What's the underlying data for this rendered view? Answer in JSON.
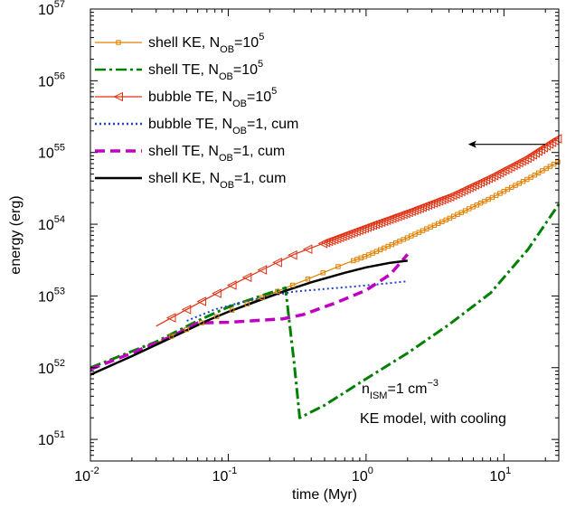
{
  "chart_data": {
    "type": "line",
    "title": "",
    "xlabel": "time (Myr)",
    "ylabel": "energy (erg)",
    "x_scale": "log",
    "y_scale": "log",
    "xlim": [
      0.01,
      25
    ],
    "ylim": [
      5e+50,
      1e+57
    ],
    "x_ticks": [
      {
        "base": "10",
        "exp": "-2",
        "value": 0.01
      },
      {
        "base": "10",
        "exp": "-1",
        "value": 0.1
      },
      {
        "base": "10",
        "exp": "0",
        "value": 1
      },
      {
        "base": "10",
        "exp": "1",
        "value": 10
      }
    ],
    "y_ticks": [
      {
        "base": "10",
        "exp": "51",
        "value": 1e+51
      },
      {
        "base": "10",
        "exp": "52",
        "value": 1e+52
      },
      {
        "base": "10",
        "exp": "53",
        "value": 1e+53
      },
      {
        "base": "10",
        "exp": "54",
        "value": 1e+54
      },
      {
        "base": "10",
        "exp": "55",
        "value": 1e+55
      },
      {
        "base": "10",
        "exp": "56",
        "value": 1e+56
      },
      {
        "base": "10",
        "exp": "57",
        "value": 1e+57
      }
    ],
    "grid": false,
    "legend_position": "top-left",
    "series": [
      {
        "key": "shell_ke_1e5",
        "label_main": "shell KE, N",
        "label_sub": "OB",
        "label_rest": "=10",
        "label_sup": "5",
        "color": "#e08000",
        "marker": "square",
        "x": [
          0.03,
          0.06,
          0.1,
          0.2,
          0.4,
          0.7,
          1,
          2,
          4,
          8,
          15,
          25
        ],
        "y": [
          2.2e+52,
          4e+52,
          6e+52,
          1.05e+53,
          1.8e+53,
          2.8e+53,
          3.6e+53,
          6.5e+53,
          1.2e+54,
          2.3e+54,
          4.3e+54,
          7.5e+54
        ]
      },
      {
        "key": "shell_te_1e5",
        "label_main": "shell TE, N",
        "label_sub": "OB",
        "label_rest": "=10",
        "label_sup": "5",
        "color": "#008000",
        "dash": "12,4,3,4",
        "x": [
          0.01,
          0.03,
          0.06,
          0.1,
          0.2,
          0.26,
          0.3,
          0.33,
          0.5,
          1,
          2,
          4,
          8,
          15,
          25
        ],
        "y": [
          1e+52,
          2.3e+52,
          4.5e+52,
          7e+52,
          1.1e+53,
          1.3e+53,
          1.2e+52,
          2e+51,
          3e+51,
          7e+51,
          1.6e+52,
          4e+52,
          1.1e+53,
          4.5e+53,
          1.9e+54
        ]
      },
      {
        "key": "bubble_te_1e5",
        "label_main": "bubble TE, N",
        "label_sub": "OB",
        "label_rest": "=10",
        "label_sup": "5",
        "color": "#e03010",
        "marker": "triangle-left",
        "x": [
          0.03,
          0.05,
          0.08,
          0.12,
          0.2,
          0.3,
          0.5,
          1,
          2,
          4,
          8,
          15,
          25
        ],
        "y": [
          3.8e+52,
          6.5e+52,
          1.05e+53,
          1.6e+53,
          2.6e+53,
          3.8e+53,
          5.5e+53,
          9e+53,
          1.45e+54,
          2.4e+54,
          4.5e+54,
          8.5e+54,
          1.6e+55
        ]
      },
      {
        "key": "bubble_te_1",
        "label_main": "bubble TE, N",
        "label_sub": "OB",
        "label_rest": "=1, cum",
        "label_sup": "",
        "color": "#2040d0",
        "dash": "2,3",
        "x": [
          0.05,
          0.08,
          0.12,
          0.2,
          0.3,
          0.5,
          0.8,
          1.2,
          2
        ],
        "y": [
          4.5e+52,
          6.5e+52,
          8e+52,
          1e+53,
          1.15e+53,
          1.25e+53,
          1.35e+53,
          1.45e+53,
          1.6e+53
        ]
      },
      {
        "key": "shell_te_1",
        "label_main": "shell TE, N",
        "label_sub": "OB",
        "label_rest": "=1, cum",
        "label_sup": "",
        "color": "#c000c0",
        "dash": "11,6",
        "x": [
          0.01,
          0.02,
          0.04,
          0.06,
          0.1,
          0.15,
          0.25,
          0.35,
          0.6,
          1,
          1.5,
          2
        ],
        "y": [
          9.5e+51,
          1.6e+52,
          2.8e+52,
          4.2e+52,
          4.3e+52,
          4.5e+52,
          4.8e+52,
          5.5e+52,
          8e+52,
          1.2e+53,
          2e+53,
          3.8e+53
        ]
      },
      {
        "key": "shell_ke_1",
        "label_main": "shell KE, N",
        "label_sub": "OB",
        "label_rest": "=1, cum",
        "label_sup": "",
        "color": "#000000",
        "x": [
          0.01,
          0.02,
          0.04,
          0.07,
          0.1,
          0.15,
          0.25,
          0.4,
          0.7,
          1,
          1.5,
          2
        ],
        "y": [
          8e+51,
          1.45e+52,
          2.7e+52,
          4.5e+52,
          6e+52,
          8e+52,
          1.15e+53,
          1.55e+53,
          2.1e+53,
          2.5e+53,
          2.9e+53,
          3.1e+53
        ]
      }
    ],
    "annotations": {
      "line1_main": "n",
      "line1_sub": "ISM",
      "line1_rest": "=1 cm",
      "line1_sup": "−3",
      "line2": "KE model, with cooling",
      "arrow": {
        "x_from": 20,
        "x_to": 5.5,
        "y": 1.3e+55
      }
    }
  }
}
